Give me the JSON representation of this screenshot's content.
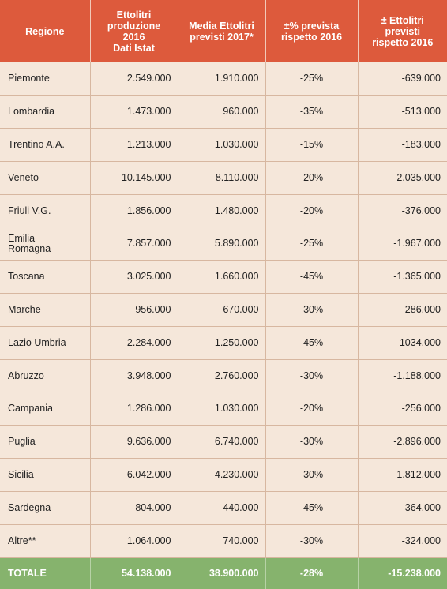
{
  "header": {
    "regione": "Regione",
    "prod2016": "Ettolitri\nproduzione\n2016\nDati Istat",
    "media2017": "Media Ettolitri\nprevisti 2017*",
    "pct": "±% prevista\nrispetto 2016",
    "diff": "± Ettolitri\nprevisti\nrispetto 2016"
  },
  "rows": [
    {
      "regione": "Piemonte",
      "prod2016": "2.549.000",
      "media2017": "1.910.000",
      "pct": "-25%",
      "diff": "-639.000"
    },
    {
      "regione": "Lombardia",
      "prod2016": "1.473.000",
      "media2017": "960.000",
      "pct": "-35%",
      "diff": "-513.000"
    },
    {
      "regione": "Trentino A.A.",
      "prod2016": "1.213.000",
      "media2017": "1.030.000",
      "pct": "-15%",
      "diff": "-183.000"
    },
    {
      "regione": "Veneto",
      "prod2016": "10.145.000",
      "media2017": "8.110.000",
      "pct": "-20%",
      "diff": "-2.035.000"
    },
    {
      "regione": "Friuli V.G.",
      "prod2016": "1.856.000",
      "media2017": "1.480.000",
      "pct": "-20%",
      "diff": "-376.000"
    },
    {
      "regione": "Emilia\nRomagna",
      "prod2016": "7.857.000",
      "media2017": "5.890.000",
      "pct": "-25%",
      "diff": "-1.967.000"
    },
    {
      "regione": "Toscana",
      "prod2016": "3.025.000",
      "media2017": "1.660.000",
      "pct": "-45%",
      "diff": "-1.365.000"
    },
    {
      "regione": "Marche",
      "prod2016": "956.000",
      "media2017": "670.000",
      "pct": "-30%",
      "diff": "-286.000"
    },
    {
      "regione": "Lazio Umbria",
      "prod2016": "2.284.000",
      "media2017": "1.250.000",
      "pct": "-45%",
      "diff": "-1034.000"
    },
    {
      "regione": "Abruzzo",
      "prod2016": "3.948.000",
      "media2017": "2.760.000",
      "pct": "-30%",
      "diff": "-1.188.000"
    },
    {
      "regione": "Campania",
      "prod2016": "1.286.000",
      "media2017": "1.030.000",
      "pct": "-20%",
      "diff": "-256.000"
    },
    {
      "regione": "Puglia",
      "prod2016": "9.636.000",
      "media2017": "6.740.000",
      "pct": "-30%",
      "diff": "-2.896.000"
    },
    {
      "regione": "Sicilia",
      "prod2016": "6.042.000",
      "media2017": "4.230.000",
      "pct": "-30%",
      "diff": "-1.812.000"
    },
    {
      "regione": "Sardegna",
      "prod2016": "804.000",
      "media2017": "440.000",
      "pct": "-45%",
      "diff": "-364.000"
    },
    {
      "regione": "Altre**",
      "prod2016": "1.064.000",
      "media2017": "740.000",
      "pct": "-30%",
      "diff": "-324.000"
    }
  ],
  "totale": {
    "regione": "TOTALE",
    "prod2016": "54.138.000",
    "media2017": "38.900.000",
    "pct": "-28%",
    "diff": "-15.238.000"
  },
  "colors": {
    "header": "#dd5a3c",
    "body": "#f5e7da",
    "total": "#86b36d",
    "border": "#d7b7a0"
  }
}
